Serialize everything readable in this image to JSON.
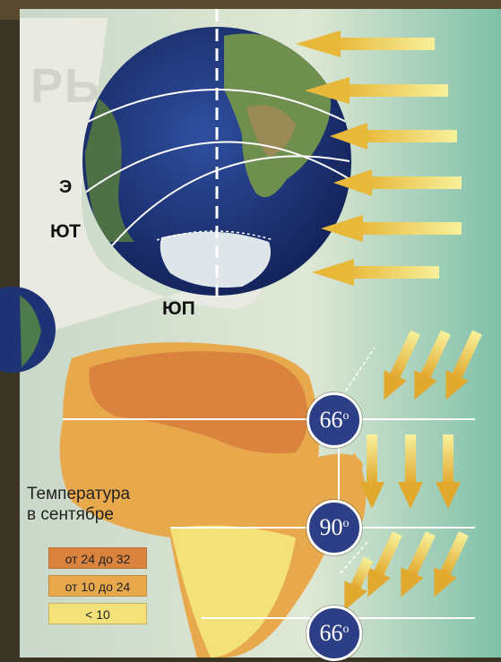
{
  "labels": {
    "equator": "Э",
    "tropic": "ЮТ",
    "south_pole": "ЮП",
    "watermark_fragment": "РЬ"
  },
  "legend": {
    "title_line1": "Температура",
    "title_line2": "в сентябре",
    "items": [
      {
        "label": "от 24 до 32",
        "color": "#d9833e"
      },
      {
        "label": "от 10 до 24",
        "color": "#e8a84c"
      },
      {
        "label": "< 10",
        "color": "#f3e27a"
      }
    ]
  },
  "latitude_badges": [
    {
      "value": "66",
      "unit": "o"
    },
    {
      "value": "90",
      "unit": "o"
    },
    {
      "value": "66",
      "unit": "o"
    }
  ],
  "colors": {
    "panel_bg": "#d8e4d2",
    "globe_ocean": "#233a86",
    "sun_ray": "#f2e27a",
    "badge_fill": "#2c3f86"
  }
}
